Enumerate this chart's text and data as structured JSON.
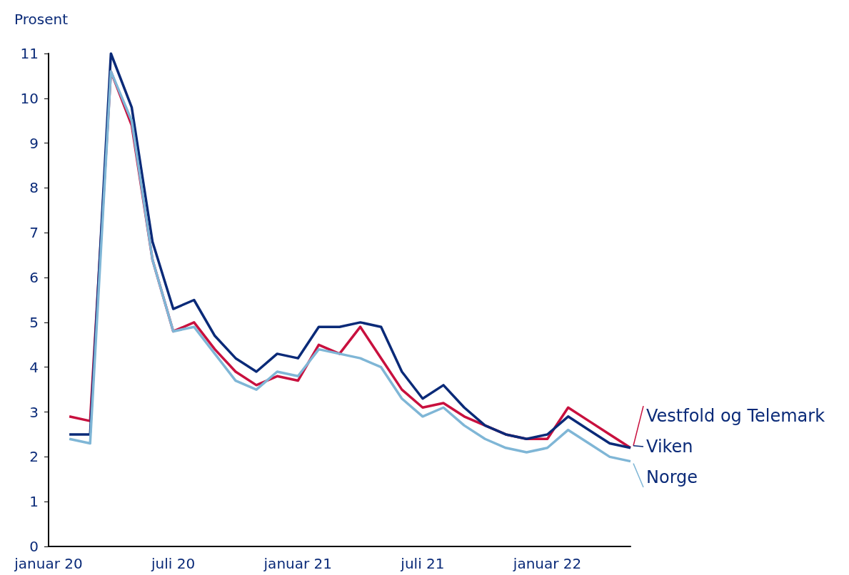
{
  "chart_data": {
    "type": "line",
    "ylabel": "Prosent",
    "categories": [
      "januar 20",
      null,
      null,
      null,
      null,
      null,
      "juli 20",
      null,
      null,
      null,
      null,
      null,
      "januar 21",
      null,
      null,
      null,
      null,
      null,
      "juli 21",
      null,
      null,
      null,
      null,
      null,
      "januar 22",
      null,
      null,
      null,
      null
    ],
    "series": [
      {
        "name": "Vestfold og Telemark",
        "color": "#c8103e",
        "values": [
          null,
          2.9,
          2.8,
          10.6,
          9.4,
          6.4,
          4.8,
          5.0,
          4.4,
          3.9,
          3.6,
          3.8,
          3.7,
          4.5,
          4.3,
          4.9,
          4.2,
          3.5,
          3.1,
          3.2,
          2.9,
          2.7,
          2.5,
          2.4,
          2.4,
          3.1,
          2.8,
          2.5,
          2.2
        ]
      },
      {
        "name": "Viken",
        "color": "#0a2a78",
        "values": [
          null,
          2.5,
          2.5,
          11,
          9.8,
          6.8,
          5.3,
          5.5,
          4.7,
          4.2,
          3.9,
          4.3,
          4.2,
          4.9,
          4.9,
          5.0,
          4.9,
          3.9,
          3.3,
          3.6,
          3.1,
          2.7,
          2.5,
          2.4,
          2.5,
          2.9,
          2.6,
          2.3,
          2.2
        ]
      },
      {
        "name": "Norge",
        "color": "#7fb6d6",
        "values": [
          null,
          2.4,
          2.3,
          10.6,
          9.5,
          6.4,
          4.8,
          4.9,
          4.3,
          3.7,
          3.5,
          3.9,
          3.8,
          4.4,
          4.3,
          4.2,
          4.0,
          3.3,
          2.9,
          3.1,
          2.7,
          2.4,
          2.2,
          2.1,
          2.2,
          2.6,
          2.3,
          2.0,
          1.9
        ]
      }
    ],
    "ylim": [
      0,
      11
    ],
    "yticks": [
      0,
      1,
      2,
      3,
      4,
      5,
      6,
      7,
      8,
      9,
      10,
      11
    ],
    "grid": false,
    "legend": "right",
    "marker": "none",
    "line_style": "solid"
  }
}
